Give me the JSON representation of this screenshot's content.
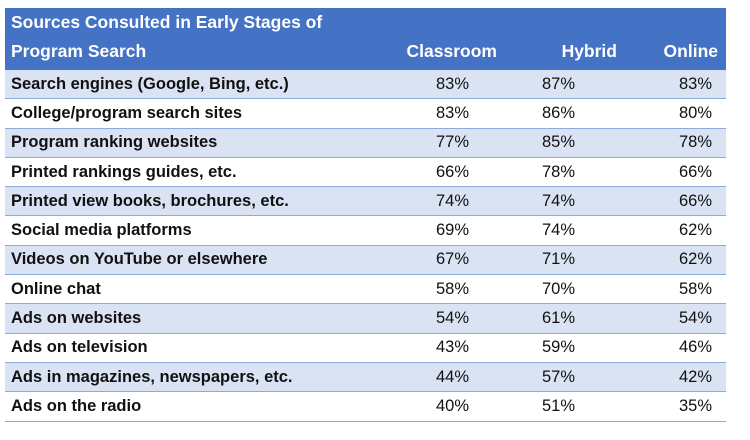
{
  "chart_data": {
    "type": "table",
    "title": "Sources Consulted in Early Stages of Program Search",
    "columns": [
      "Classroom",
      "Hybrid",
      "Online"
    ],
    "rows": [
      {
        "label": "Search engines (Google, Bing, etc.)",
        "values": [
          "83%",
          "87%",
          "83%"
        ]
      },
      {
        "label": "College/program search sites",
        "values": [
          "83%",
          "86%",
          "80%"
        ]
      },
      {
        "label": "Program ranking websites",
        "values": [
          "77%",
          "85%",
          "78%"
        ]
      },
      {
        "label": "Printed rankings guides, etc.",
        "values": [
          "66%",
          "78%",
          "66%"
        ]
      },
      {
        "label": "Printed view books, brochures, etc.",
        "values": [
          "74%",
          "74%",
          "66%"
        ]
      },
      {
        "label": "Social media platforms",
        "values": [
          "69%",
          "74%",
          "62%"
        ]
      },
      {
        "label": "Videos on YouTube or elsewhere",
        "values": [
          "67%",
          "71%",
          "62%"
        ]
      },
      {
        "label": "Online chat",
        "values": [
          "58%",
          "70%",
          "58%"
        ]
      },
      {
        "label": "Ads on websites",
        "values": [
          "54%",
          "61%",
          "54%"
        ]
      },
      {
        "label": "Ads on television",
        "values": [
          "43%",
          "59%",
          "46%"
        ]
      },
      {
        "label": "Ads in magazines, newspapers, etc.",
        "values": [
          "44%",
          "57%",
          "42%"
        ]
      },
      {
        "label": "Ads on the radio",
        "values": [
          "40%",
          "51%",
          "35%"
        ]
      }
    ],
    "colors": {
      "header": "#4472c4",
      "band": "#dae3f3",
      "rule": "#8eaadb"
    }
  }
}
